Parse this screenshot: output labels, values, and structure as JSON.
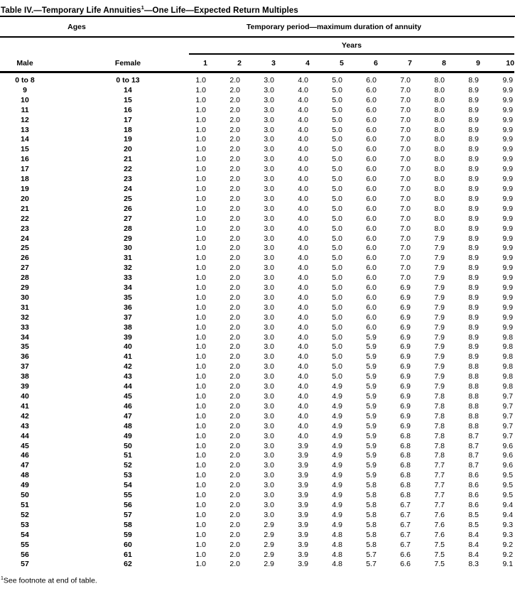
{
  "title": {
    "pre": "Table IV.—Temporary Life Annuities",
    "sup": "1",
    "post": "—One Life—Expected Return Multiples"
  },
  "table": {
    "ages_header": "Ages",
    "period_header": "Temporary period—maximum duration of annuity",
    "years_header": "Years",
    "male_header": "Male",
    "female_header": "Female",
    "year_columns": [
      "1",
      "2",
      "3",
      "4",
      "5",
      "6",
      "7",
      "8",
      "9",
      "10"
    ],
    "rows": [
      [
        "0 to 8",
        "0 to 13",
        "1.0",
        "2.0",
        "3.0",
        "4.0",
        "5.0",
        "6.0",
        "7.0",
        "8.0",
        "8.9",
        "9.9"
      ],
      [
        "9",
        "14",
        "1.0",
        "2.0",
        "3.0",
        "4.0",
        "5.0",
        "6.0",
        "7.0",
        "8.0",
        "8.9",
        "9.9"
      ],
      [
        "10",
        "15",
        "1.0",
        "2.0",
        "3.0",
        "4.0",
        "5.0",
        "6.0",
        "7.0",
        "8.0",
        "8.9",
        "9.9"
      ],
      [
        "11",
        "16",
        "1.0",
        "2.0",
        "3.0",
        "4.0",
        "5.0",
        "6.0",
        "7.0",
        "8.0",
        "8.9",
        "9.9"
      ],
      [
        "12",
        "17",
        "1.0",
        "2.0",
        "3.0",
        "4.0",
        "5.0",
        "6.0",
        "7.0",
        "8.0",
        "8.9",
        "9.9"
      ],
      [
        "13",
        "18",
        "1.0",
        "2.0",
        "3.0",
        "4.0",
        "5.0",
        "6.0",
        "7.0",
        "8.0",
        "8.9",
        "9.9"
      ],
      [
        "14",
        "19",
        "1.0",
        "2.0",
        "3.0",
        "4.0",
        "5.0",
        "6.0",
        "7.0",
        "8.0",
        "8.9",
        "9.9"
      ],
      [
        "15",
        "20",
        "1.0",
        "2.0",
        "3.0",
        "4.0",
        "5.0",
        "6.0",
        "7.0",
        "8.0",
        "8.9",
        "9.9"
      ],
      [
        "16",
        "21",
        "1.0",
        "2.0",
        "3.0",
        "4.0",
        "5.0",
        "6.0",
        "7.0",
        "8.0",
        "8.9",
        "9.9"
      ],
      [
        "17",
        "22",
        "1.0",
        "2.0",
        "3.0",
        "4.0",
        "5.0",
        "6.0",
        "7.0",
        "8.0",
        "8.9",
        "9.9"
      ],
      [
        "18",
        "23",
        "1.0",
        "2.0",
        "3.0",
        "4.0",
        "5.0",
        "6.0",
        "7.0",
        "8.0",
        "8.9",
        "9.9"
      ],
      [
        "19",
        "24",
        "1.0",
        "2.0",
        "3.0",
        "4.0",
        "5.0",
        "6.0",
        "7.0",
        "8.0",
        "8.9",
        "9.9"
      ],
      [
        "20",
        "25",
        "1.0",
        "2.0",
        "3.0",
        "4.0",
        "5.0",
        "6.0",
        "7.0",
        "8.0",
        "8.9",
        "9.9"
      ],
      [
        "21",
        "26",
        "1.0",
        "2.0",
        "3.0",
        "4.0",
        "5.0",
        "6.0",
        "7.0",
        "8.0",
        "8.9",
        "9.9"
      ],
      [
        "22",
        "27",
        "1.0",
        "2.0",
        "3.0",
        "4.0",
        "5.0",
        "6.0",
        "7.0",
        "8.0",
        "8.9",
        "9.9"
      ],
      [
        "23",
        "28",
        "1.0",
        "2.0",
        "3.0",
        "4.0",
        "5.0",
        "6.0",
        "7.0",
        "8.0",
        "8.9",
        "9.9"
      ],
      [
        "24",
        "29",
        "1.0",
        "2.0",
        "3.0",
        "4.0",
        "5.0",
        "6.0",
        "7.0",
        "7.9",
        "8.9",
        "9.9"
      ],
      [
        "25",
        "30",
        "1.0",
        "2.0",
        "3.0",
        "4.0",
        "5.0",
        "6.0",
        "7.0",
        "7.9",
        "8.9",
        "9.9"
      ],
      [
        "26",
        "31",
        "1.0",
        "2.0",
        "3.0",
        "4.0",
        "5.0",
        "6.0",
        "7.0",
        "7.9",
        "8.9",
        "9.9"
      ],
      [
        "27",
        "32",
        "1.0",
        "2.0",
        "3.0",
        "4.0",
        "5.0",
        "6.0",
        "7.0",
        "7.9",
        "8.9",
        "9.9"
      ],
      [
        "28",
        "33",
        "1.0",
        "2.0",
        "3.0",
        "4.0",
        "5.0",
        "6.0",
        "7.0",
        "7.9",
        "8.9",
        "9.9"
      ],
      [
        "29",
        "34",
        "1.0",
        "2.0",
        "3.0",
        "4.0",
        "5.0",
        "6.0",
        "6.9",
        "7.9",
        "8.9",
        "9.9"
      ],
      [
        "30",
        "35",
        "1.0",
        "2.0",
        "3.0",
        "4.0",
        "5.0",
        "6.0",
        "6.9",
        "7.9",
        "8.9",
        "9.9"
      ],
      [
        "31",
        "36",
        "1.0",
        "2.0",
        "3.0",
        "4.0",
        "5.0",
        "6.0",
        "6.9",
        "7.9",
        "8.9",
        "9.9"
      ],
      [
        "32",
        "37",
        "1.0",
        "2.0",
        "3.0",
        "4.0",
        "5.0",
        "6.0",
        "6.9",
        "7.9",
        "8.9",
        "9.9"
      ],
      [
        "33",
        "38",
        "1.0",
        "2.0",
        "3.0",
        "4.0",
        "5.0",
        "6.0",
        "6.9",
        "7.9",
        "8.9",
        "9.9"
      ],
      [
        "34",
        "39",
        "1.0",
        "2.0",
        "3.0",
        "4.0",
        "5.0",
        "5.9",
        "6.9",
        "7.9",
        "8.9",
        "9.8"
      ],
      [
        "35",
        "40",
        "1.0",
        "2.0",
        "3.0",
        "4.0",
        "5.0",
        "5.9",
        "6.9",
        "7.9",
        "8.9",
        "9.8"
      ],
      [
        "36",
        "41",
        "1.0",
        "2.0",
        "3.0",
        "4.0",
        "5.0",
        "5.9",
        "6.9",
        "7.9",
        "8.9",
        "9.8"
      ],
      [
        "37",
        "42",
        "1.0",
        "2.0",
        "3.0",
        "4.0",
        "5.0",
        "5.9",
        "6.9",
        "7.9",
        "8.8",
        "9.8"
      ],
      [
        "38",
        "43",
        "1.0",
        "2.0",
        "3.0",
        "4.0",
        "5.0",
        "5.9",
        "6.9",
        "7.9",
        "8.8",
        "9.8"
      ],
      [
        "39",
        "44",
        "1.0",
        "2.0",
        "3.0",
        "4.0",
        "4.9",
        "5.9",
        "6.9",
        "7.9",
        "8.8",
        "9.8"
      ],
      [
        "40",
        "45",
        "1.0",
        "2.0",
        "3.0",
        "4.0",
        "4.9",
        "5.9",
        "6.9",
        "7.8",
        "8.8",
        "9.7"
      ],
      [
        "41",
        "46",
        "1.0",
        "2.0",
        "3.0",
        "4.0",
        "4.9",
        "5.9",
        "6.9",
        "7.8",
        "8.8",
        "9.7"
      ],
      [
        "42",
        "47",
        "1.0",
        "2.0",
        "3.0",
        "4.0",
        "4.9",
        "5.9",
        "6.9",
        "7.8",
        "8.8",
        "9.7"
      ],
      [
        "43",
        "48",
        "1.0",
        "2.0",
        "3.0",
        "4.0",
        "4.9",
        "5.9",
        "6.9",
        "7.8",
        "8.8",
        "9.7"
      ],
      [
        "44",
        "49",
        "1.0",
        "2.0",
        "3.0",
        "4.0",
        "4.9",
        "5.9",
        "6.8",
        "7.8",
        "8.7",
        "9.7"
      ],
      [
        "45",
        "50",
        "1.0",
        "2.0",
        "3.0",
        "3.9",
        "4.9",
        "5.9",
        "6.8",
        "7.8",
        "8.7",
        "9.6"
      ],
      [
        "46",
        "51",
        "1.0",
        "2.0",
        "3.0",
        "3.9",
        "4.9",
        "5.9",
        "6.8",
        "7.8",
        "8.7",
        "9.6"
      ],
      [
        "47",
        "52",
        "1.0",
        "2.0",
        "3.0",
        "3.9",
        "4.9",
        "5.9",
        "6.8",
        "7.7",
        "8.7",
        "9.6"
      ],
      [
        "48",
        "53",
        "1.0",
        "2.0",
        "3.0",
        "3.9",
        "4.9",
        "5.9",
        "6.8",
        "7.7",
        "8.6",
        "9.5"
      ],
      [
        "49",
        "54",
        "1.0",
        "2.0",
        "3.0",
        "3.9",
        "4.9",
        "5.8",
        "6.8",
        "7.7",
        "8.6",
        "9.5"
      ],
      [
        "50",
        "55",
        "1.0",
        "2.0",
        "3.0",
        "3.9",
        "4.9",
        "5.8",
        "6.8",
        "7.7",
        "8.6",
        "9.5"
      ],
      [
        "51",
        "56",
        "1.0",
        "2.0",
        "3.0",
        "3.9",
        "4.9",
        "5.8",
        "6.7",
        "7.7",
        "8.6",
        "9.4"
      ],
      [
        "52",
        "57",
        "1.0",
        "2.0",
        "3.0",
        "3.9",
        "4.9",
        "5.8",
        "6.7",
        "7.6",
        "8.5",
        "9.4"
      ],
      [
        "53",
        "58",
        "1.0",
        "2.0",
        "2.9",
        "3.9",
        "4.9",
        "5.8",
        "6.7",
        "7.6",
        "8.5",
        "9.3"
      ],
      [
        "54",
        "59",
        "1.0",
        "2.0",
        "2.9",
        "3.9",
        "4.8",
        "5.8",
        "6.7",
        "7.6",
        "8.4",
        "9.3"
      ],
      [
        "55",
        "60",
        "1.0",
        "2.0",
        "2.9",
        "3.9",
        "4.8",
        "5.8",
        "6.7",
        "7.5",
        "8.4",
        "9.2"
      ],
      [
        "56",
        "61",
        "1.0",
        "2.0",
        "2.9",
        "3.9",
        "4.8",
        "5.7",
        "6.6",
        "7.5",
        "8.4",
        "9.2"
      ],
      [
        "57",
        "62",
        "1.0",
        "2.0",
        "2.9",
        "3.9",
        "4.8",
        "5.7",
        "6.6",
        "7.5",
        "8.3",
        "9.1"
      ]
    ]
  },
  "footnote": {
    "sup": "1",
    "text": "See footnote at end of table."
  }
}
